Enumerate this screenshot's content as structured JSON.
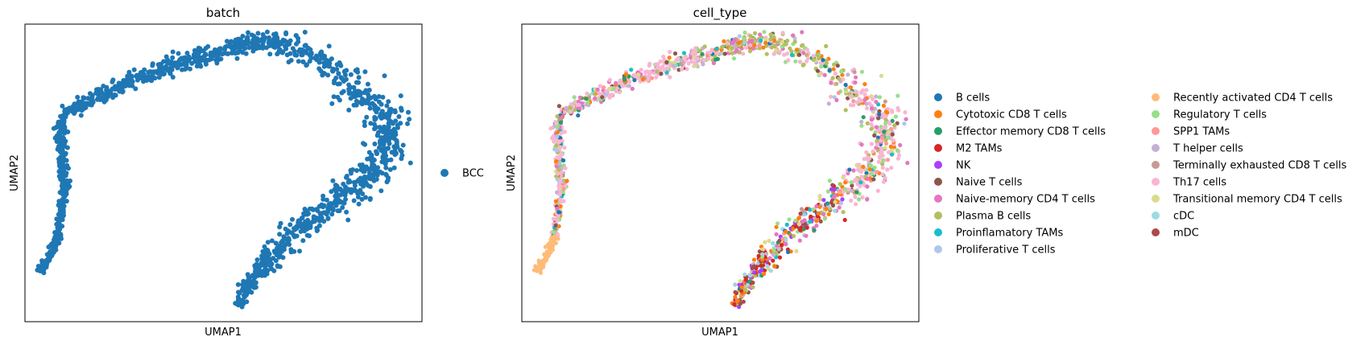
{
  "chart_data": [
    {
      "type": "scatter",
      "title": "batch",
      "xlabel": "UMAP1",
      "ylabel": "UMAP2",
      "xticks": "none",
      "yticks": "none",
      "grid": false,
      "legend_position": "right",
      "legend": [
        {
          "name": "BCC",
          "color": "#1f77b4"
        }
      ],
      "point_color": "#1f77b4",
      "shape": "upside-down U / arch of cells (UMAP embedding, coordinates unlabeled)"
    },
    {
      "type": "scatter",
      "title": "cell_type",
      "xlabel": "UMAP1",
      "ylabel": "UMAP2",
      "xticks": "none",
      "yticks": "none",
      "grid": false,
      "legend_position": "right",
      "legend": [
        {
          "name": "B cells",
          "color": "#1f77b4"
        },
        {
          "name": "Cytotoxic CD8 T cells",
          "color": "#ff7f0e"
        },
        {
          "name": "Effector memory CD8 T cells",
          "color": "#279e68"
        },
        {
          "name": "M2 TAMs",
          "color": "#d62728"
        },
        {
          "name": "NK",
          "color": "#aa40fc"
        },
        {
          "name": "Naive T cells",
          "color": "#8c564b"
        },
        {
          "name": "Naive-memory CD4 T cells",
          "color": "#e377c2"
        },
        {
          "name": "Plasma B cells",
          "color": "#b5bd61"
        },
        {
          "name": "Proinflamatory TAMs",
          "color": "#17becf"
        },
        {
          "name": "Proliferative T cells",
          "color": "#aec7e8"
        },
        {
          "name": "Recently activated CD4 T cells",
          "color": "#ffbb78"
        },
        {
          "name": "Regulatory T cells",
          "color": "#98df8a"
        },
        {
          "name": "SPP1 TAMs",
          "color": "#ff9896"
        },
        {
          "name": "T helper cells",
          "color": "#c5b0d5"
        },
        {
          "name": "Terminally exhausted CD8 T cells",
          "color": "#c49c94"
        },
        {
          "name": "Th17 cells",
          "color": "#f7b6d2"
        },
        {
          "name": "Transitional memory CD4 T cells",
          "color": "#dbdb8d"
        },
        {
          "name": "cDC",
          "color": "#9edae5"
        },
        {
          "name": "mDC",
          "color": "#ad494a"
        }
      ]
    }
  ]
}
